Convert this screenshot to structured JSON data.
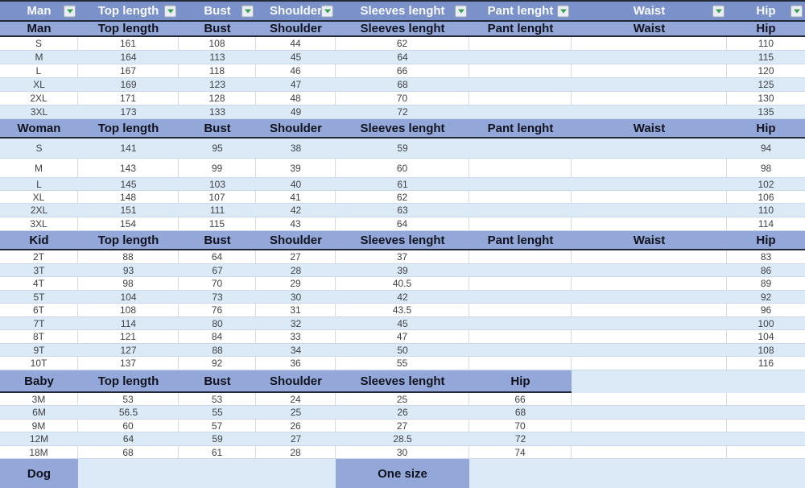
{
  "table": {
    "colors": {
      "filter_row_blue": "#7B91C9",
      "section_header_blue": "#93A8D8",
      "band_light_blue": "#DCE9F6",
      "dark_border": "#222939",
      "filter_arrow_green": "#3E9E50"
    },
    "filter_row": {
      "labels": [
        "Man",
        "Top length",
        "Bust",
        "Shoulder",
        "Sleeves lenght",
        "Pant lenght",
        "Waist",
        "Hip"
      ],
      "dropdown_icon": "chevron-down-icon"
    },
    "sections": [
      {
        "name": "Man",
        "header": [
          "Man",
          "Top length",
          "Bust",
          "Shoulder",
          "Sleeves lenght",
          "Pant lenght",
          "Waist",
          "Hip"
        ],
        "rows": [
          [
            "S",
            "161",
            "108",
            "44",
            "62",
            "",
            "",
            "110"
          ],
          [
            "M",
            "164",
            "113",
            "45",
            "64",
            "",
            "",
            "115"
          ],
          [
            "L",
            "167",
            "118",
            "46",
            "66",
            "",
            "",
            "120"
          ],
          [
            "XL",
            "169",
            "123",
            "47",
            "68",
            "",
            "",
            "125"
          ],
          [
            "2XL",
            "171",
            "128",
            "48",
            "70",
            "",
            "",
            "130"
          ],
          [
            "3XL",
            "173",
            "133",
            "49",
            "72",
            "",
            "",
            "135"
          ]
        ]
      },
      {
        "name": "Woman",
        "header": [
          "Woman",
          "Top length",
          "Bust",
          "Shoulder",
          "Sleeves lenght",
          "Pant lenght",
          "Waist",
          "Hip"
        ],
        "rows": [
          [
            "S",
            "141",
            "95",
            "38",
            "59",
            "",
            "",
            "94"
          ],
          [
            "M",
            "143",
            "99",
            "39",
            "60",
            "",
            "",
            "98"
          ],
          [
            "L",
            "145",
            "103",
            "40",
            "61",
            "",
            "",
            "102"
          ],
          [
            "XL",
            "148",
            "107",
            "41",
            "62",
            "",
            "",
            "106"
          ],
          [
            "2XL",
            "151",
            "111",
            "42",
            "63",
            "",
            "",
            "110"
          ],
          [
            "3XL",
            "154",
            "115",
            "43",
            "64",
            "",
            "",
            "114"
          ]
        ]
      },
      {
        "name": "Kid",
        "header": [
          "Kid",
          "Top length",
          "Bust",
          "Shoulder",
          "Sleeves lenght",
          "Pant lenght",
          "Waist",
          "Hip"
        ],
        "rows": [
          [
            "2T",
            "88",
            "64",
            "27",
            "37",
            "",
            "",
            "83"
          ],
          [
            "3T",
            "93",
            "67",
            "28",
            "39",
            "",
            "",
            "86"
          ],
          [
            "4T",
            "98",
            "70",
            "29",
            "40.5",
            "",
            "",
            "89"
          ],
          [
            "5T",
            "104",
            "73",
            "30",
            "42",
            "",
            "",
            "92"
          ],
          [
            "6T",
            "108",
            "76",
            "31",
            "43.5",
            "",
            "",
            "96"
          ],
          [
            "7T",
            "114",
            "80",
            "32",
            "45",
            "",
            "",
            "100"
          ],
          [
            "8T",
            "121",
            "84",
            "33",
            "47",
            "",
            "",
            "104"
          ],
          [
            "9T",
            "127",
            "88",
            "34",
            "50",
            "",
            "",
            "108"
          ],
          [
            "10T",
            "137",
            "92",
            "36",
            "55",
            "",
            "",
            "116"
          ]
        ]
      },
      {
        "name": "Baby",
        "header": [
          "Baby",
          "Top length",
          "Bust",
          "Shoulder",
          "Sleeves lenght",
          "Hip"
        ],
        "rows": [
          [
            "3M",
            "53",
            "53",
            "24",
            "25",
            "66"
          ],
          [
            "6M",
            "56.5",
            "55",
            "25",
            "26",
            "68"
          ],
          [
            "9M",
            "60",
            "57",
            "26",
            "27",
            "70"
          ],
          [
            "12M",
            "64",
            "59",
            "27",
            "28.5",
            "72"
          ],
          [
            "18M",
            "68",
            "61",
            "28",
            "30",
            "74"
          ]
        ]
      }
    ],
    "dog_row": {
      "label": "Dog",
      "value": "One size"
    }
  }
}
